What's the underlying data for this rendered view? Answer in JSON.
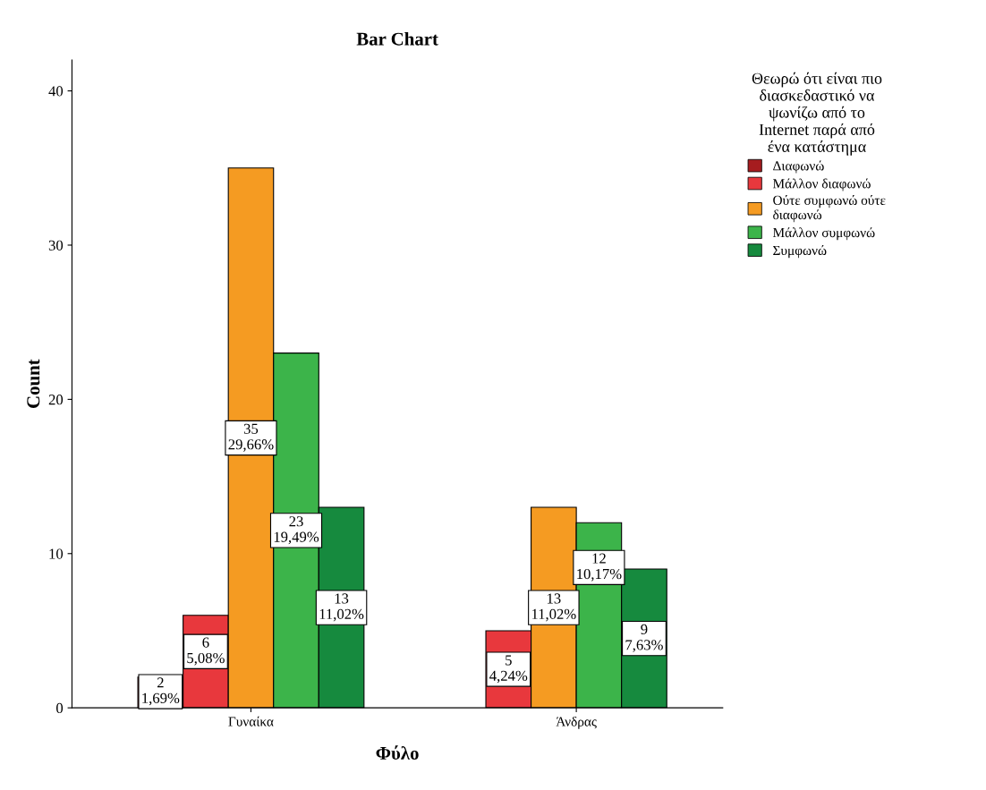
{
  "chart_data": {
    "type": "bar",
    "title": "Bar Chart",
    "xlabel": "Φύλο",
    "ylabel": "Count",
    "legend_title": "Θεωρώ ότι είναι πιο\nδιασκεδαστικό να\nψωνίζω από το\nInternet παρά από\nένα κατάστημα",
    "categories": [
      "Γυναίκα",
      "Άνδρας"
    ],
    "series": [
      {
        "name": "Διαφωνώ",
        "color": "#a61c1f",
        "values": [
          2,
          null
        ],
        "value_labels": [
          "2\n1,69%",
          null
        ]
      },
      {
        "name": "Μάλλον διαφωνώ",
        "color": "#e8383d",
        "values": [
          6,
          5
        ],
        "value_labels": [
          "6\n5,08%",
          "5\n4,24%"
        ]
      },
      {
        "name": "Ούτε συμφωνώ ούτε\nδιαφωνώ",
        "color": "#f59b22",
        "values": [
          35,
          13
        ],
        "value_labels": [
          "35\n29,66%",
          "13\n11,02%"
        ]
      },
      {
        "name": "Μάλλον συμφωνώ",
        "color": "#3cb44a",
        "values": [
          23,
          12
        ],
        "value_labels": [
          "23\n19,49%",
          "12\n10,17%"
        ]
      },
      {
        "name": "Συμφωνώ",
        "color": "#168a3e",
        "values": [
          13,
          9
        ],
        "value_labels": [
          "13\n11,02%",
          "9\n7,63%"
        ]
      }
    ],
    "ylim": [
      0,
      42
    ],
    "yticks": [
      0,
      10,
      20,
      30,
      40
    ],
    "grid": false,
    "legend": "top right"
  }
}
